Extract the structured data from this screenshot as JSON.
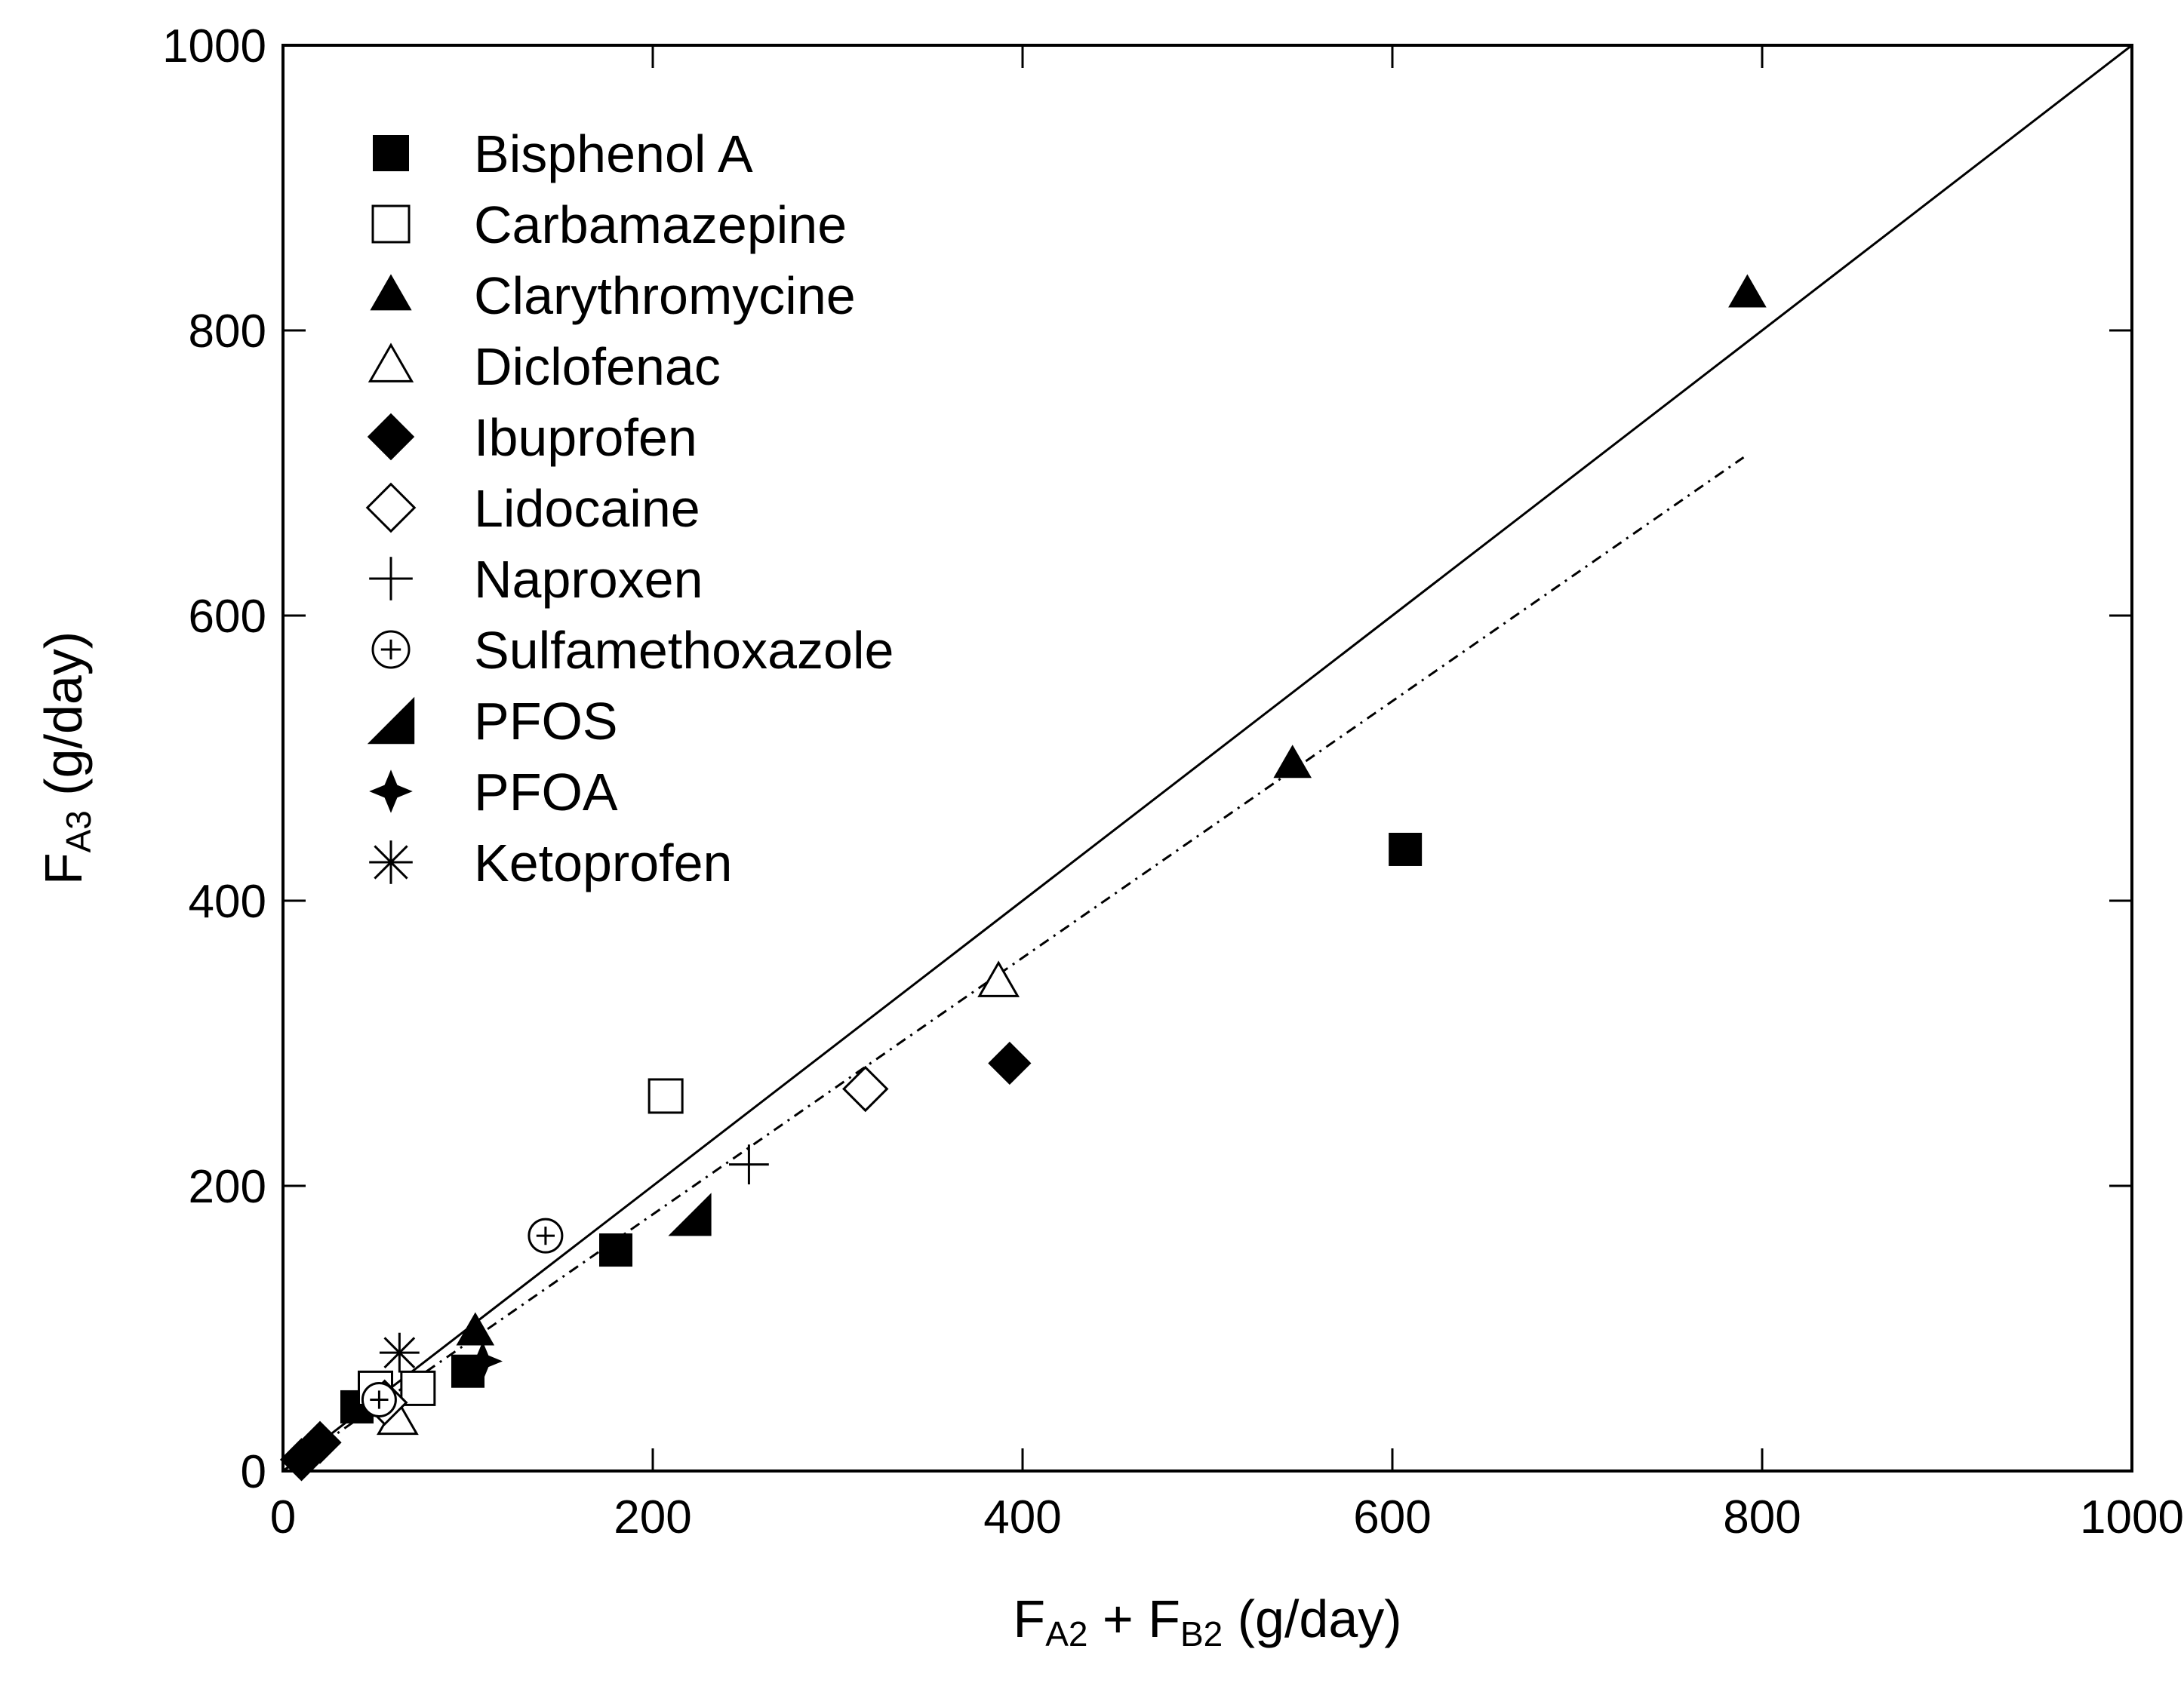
{
  "chart_data": {
    "type": "scatter",
    "xlabel": {
      "main": "F",
      "sub1": "A2",
      "mid": " + F",
      "sub2": "B2",
      "unit": " (g/day)"
    },
    "ylabel": {
      "main": "F",
      "sub": "A3",
      "unit": " (g/day)"
    },
    "xlim": [
      0,
      1000
    ],
    "ylim": [
      0,
      1000
    ],
    "x_ticks": [
      "0",
      "200",
      "400",
      "600",
      "800",
      "1000"
    ],
    "y_ticks": [
      "0",
      "200",
      "400",
      "600",
      "800",
      "1000"
    ],
    "x_tick_values": [
      0,
      200,
      400,
      600,
      800,
      1000
    ],
    "y_tick_values": [
      0,
      200,
      400,
      600,
      800,
      1000
    ],
    "grid": false,
    "legend_position": "top-left",
    "series": [
      {
        "name": "Bisphenol A",
        "marker": "filled-square",
        "points": [
          [
            607,
            436
          ],
          [
            180,
            155
          ],
          [
            100,
            70
          ],
          [
            40,
            45
          ]
        ]
      },
      {
        "name": "Carbamazepine",
        "marker": "open-square",
        "points": [
          [
            207,
            263
          ],
          [
            73,
            58
          ],
          [
            50,
            58
          ]
        ]
      },
      {
        "name": "Clarythromycine",
        "marker": "filled-triangle",
        "points": [
          [
            792,
            826
          ],
          [
            546,
            496
          ],
          [
            104,
            98
          ]
        ]
      },
      {
        "name": "Diclofenac",
        "marker": "open-triangle",
        "points": [
          [
            387,
            343
          ],
          [
            62,
            36
          ]
        ]
      },
      {
        "name": "Ibuprofen",
        "marker": "filled-diamond",
        "points": [
          [
            393,
            286
          ],
          [
            20,
            20
          ],
          [
            10,
            8
          ]
        ]
      },
      {
        "name": "Lidocaine",
        "marker": "open-diamond",
        "points": [
          [
            315,
            268
          ],
          [
            55,
            48
          ]
        ]
      },
      {
        "name": "Naproxen",
        "marker": "plus",
        "points": [
          [
            252,
            215
          ]
        ]
      },
      {
        "name": "Sulfamethoxazole",
        "marker": "circle-plus",
        "points": [
          [
            142,
            165
          ],
          [
            52,
            50
          ]
        ]
      },
      {
        "name": "PFOS",
        "marker": "filled-wedge",
        "points": [
          [
            220,
            180
          ]
        ]
      },
      {
        "name": "PFOA",
        "marker": "filled-star4",
        "points": [
          [
            108,
            77
          ]
        ]
      },
      {
        "name": "Ketoprofen",
        "marker": "asterisk",
        "points": [
          [
            63,
            83
          ]
        ]
      }
    ],
    "lines": [
      {
        "style": "solid",
        "x": [
          0,
          1000
        ],
        "y": [
          0,
          1000
        ]
      },
      {
        "style": "dashdot",
        "x": [
          0,
          790
        ],
        "y": [
          0,
          711
        ]
      }
    ]
  }
}
